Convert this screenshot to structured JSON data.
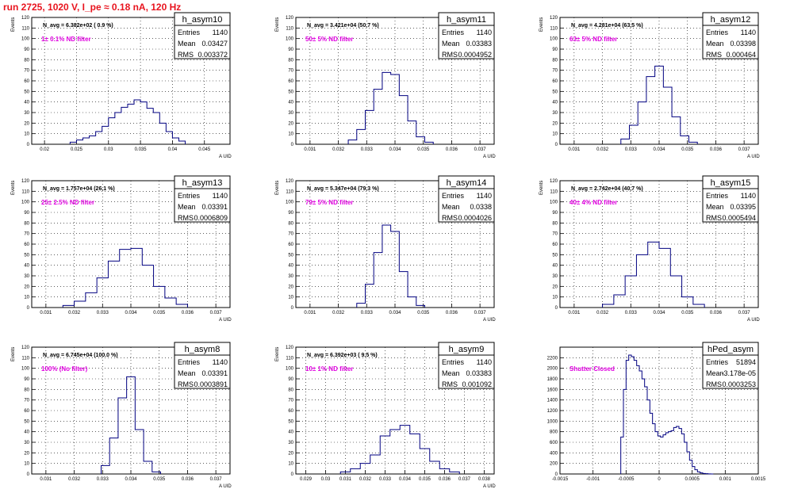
{
  "page_title": "run 2725,  1020 V, I_pe ≈ 0.18 nA, 120 Hz",
  "chart_data": [
    {
      "type": "histogram",
      "name": "h_asym10",
      "entries": "1140",
      "mean": "0.03427",
      "rms": "0.003372",
      "navg": "N_avg = 6.382e+02 ( 0.9 %)",
      "filter": "1± 0.1% ND filter",
      "ylabel": "Events",
      "xlabel": "A_UID",
      "xlim": [
        0.018,
        0.049
      ],
      "ylim": [
        0,
        120
      ],
      "xticks": [
        0.02,
        0.025,
        0.03,
        0.035,
        0.04,
        0.045
      ],
      "xtick_labels": [
        "0.02",
        "0.025",
        "0.03",
        "0.035",
        "0.04",
        "0.045"
      ],
      "yticks": [
        0,
        10,
        20,
        30,
        40,
        50,
        60,
        70,
        80,
        90,
        100,
        110,
        120
      ],
      "bins_x": [
        0.0245,
        0.0255,
        0.0265,
        0.0275,
        0.0285,
        0.0295,
        0.0305,
        0.0315,
        0.0325,
        0.0335,
        0.0345,
        0.0355,
        0.0365,
        0.0375,
        0.0385,
        0.0395,
        0.0405,
        0.0415
      ],
      "bins_y": [
        2,
        4,
        6,
        8,
        12,
        17,
        25,
        30,
        35,
        38,
        42,
        40,
        34,
        30,
        20,
        12,
        6,
        3
      ]
    },
    {
      "type": "histogram",
      "name": "h_asym11",
      "entries": "1140",
      "mean": "0.03383",
      "rms": "0.0004952",
      "navg": "N_avg = 3.421e+04 (50.7 %)",
      "filter": "50± 5% ND filter",
      "ylabel": "Events",
      "xlabel": "A_UID",
      "xlim": [
        0.0305,
        0.0375
      ],
      "ylim": [
        0,
        120
      ],
      "xticks": [
        0.031,
        0.032,
        0.033,
        0.034,
        0.035,
        0.036,
        0.037
      ],
      "xtick_labels": [
        "0.031",
        "0.032",
        "0.033",
        "0.034",
        "0.035",
        "0.036",
        "0.037"
      ],
      "yticks": [
        0,
        10,
        20,
        30,
        40,
        50,
        60,
        70,
        80,
        90,
        100,
        110,
        120
      ],
      "bins_x": [
        0.0325,
        0.0328,
        0.0331,
        0.0334,
        0.0337,
        0.034,
        0.0343,
        0.0346,
        0.0349,
        0.0352
      ],
      "bins_y": [
        4,
        14,
        32,
        52,
        68,
        66,
        46,
        22,
        7,
        2
      ]
    },
    {
      "type": "histogram",
      "name": "h_asym12",
      "entries": "1140",
      "mean": "0.03398",
      "rms": "0.000464",
      "navg": "N_avg = 4.281e+04 (63.5 %)",
      "filter": "63± 5% ND filter",
      "ylabel": "Events",
      "xlabel": "A_UID",
      "xlim": [
        0.0305,
        0.0375
      ],
      "ylim": [
        0,
        120
      ],
      "xticks": [
        0.031,
        0.032,
        0.033,
        0.034,
        0.035,
        0.036,
        0.037
      ],
      "xtick_labels": [
        "0.031",
        "0.032",
        "0.033",
        "0.034",
        "0.035",
        "0.036",
        "0.037"
      ],
      "yticks": [
        0,
        10,
        20,
        30,
        40,
        50,
        60,
        70,
        80,
        90,
        100,
        110,
        120
      ],
      "bins_x": [
        0.0328,
        0.0331,
        0.0334,
        0.0337,
        0.034,
        0.0343,
        0.0346,
        0.0349,
        0.0352
      ],
      "bins_y": [
        5,
        18,
        40,
        64,
        74,
        54,
        26,
        8,
        2
      ]
    },
    {
      "type": "histogram",
      "name": "h_asym13",
      "entries": "1140",
      "mean": "0.03391",
      "rms": "0.0006809",
      "navg": "N_avg = 1.757e+04 (26.1 %)",
      "filter": "25± 2.5% ND filter",
      "ylabel": "Events",
      "xlabel": "A_UID",
      "xlim": [
        0.0305,
        0.0375
      ],
      "ylim": [
        0,
        120
      ],
      "xticks": [
        0.031,
        0.032,
        0.033,
        0.034,
        0.035,
        0.036,
        0.037
      ],
      "xtick_labels": [
        "0.031",
        "0.032",
        "0.033",
        "0.034",
        "0.035",
        "0.036",
        "0.037"
      ],
      "yticks": [
        0,
        10,
        20,
        30,
        40,
        50,
        60,
        70,
        80,
        90,
        100,
        110,
        120
      ],
      "bins_x": [
        0.0318,
        0.0322,
        0.0326,
        0.033,
        0.0334,
        0.0338,
        0.0342,
        0.0346,
        0.035,
        0.0354,
        0.0358
      ],
      "bins_y": [
        2,
        6,
        14,
        28,
        44,
        55,
        56,
        40,
        20,
        9,
        3
      ]
    },
    {
      "type": "histogram",
      "name": "h_asym14",
      "entries": "1140",
      "mean": "0.0338",
      "rms": "0.0004026",
      "navg": "N_avg = 5.347e+04 (79.3 %)",
      "filter": "79± 5% ND filter",
      "ylabel": "Events",
      "xlabel": "A_UID",
      "xlim": [
        0.0305,
        0.0375
      ],
      "ylim": [
        0,
        120
      ],
      "xticks": [
        0.031,
        0.032,
        0.033,
        0.034,
        0.035,
        0.036,
        0.037
      ],
      "xtick_labels": [
        "0.031",
        "0.032",
        "0.033",
        "0.034",
        "0.035",
        "0.036",
        "0.037"
      ],
      "yticks": [
        0,
        10,
        20,
        30,
        40,
        50,
        60,
        70,
        80,
        90,
        100,
        110,
        120
      ],
      "bins_x": [
        0.0328,
        0.0331,
        0.0334,
        0.0337,
        0.034,
        0.0343,
        0.0346,
        0.0349
      ],
      "bins_y": [
        4,
        22,
        52,
        78,
        72,
        34,
        10,
        2
      ]
    },
    {
      "type": "histogram",
      "name": "h_asym15",
      "entries": "1140",
      "mean": "0.03395",
      "rms": "0.0005494",
      "navg": "N_avg = 2.742e+04 (40.7 %)",
      "filter": "40± 4% ND filter",
      "ylabel": "Events",
      "xlabel": "A_UID",
      "xlim": [
        0.0305,
        0.0375
      ],
      "ylim": [
        0,
        120
      ],
      "xticks": [
        0.031,
        0.032,
        0.033,
        0.034,
        0.035,
        0.036,
        0.037
      ],
      "xtick_labels": [
        "0.031",
        "0.032",
        "0.033",
        "0.034",
        "0.035",
        "0.036",
        "0.037"
      ],
      "yticks": [
        0,
        10,
        20,
        30,
        40,
        50,
        60,
        70,
        80,
        90,
        100,
        110,
        120
      ],
      "bins_x": [
        0.0322,
        0.0326,
        0.033,
        0.0334,
        0.0338,
        0.0342,
        0.0346,
        0.035,
        0.0354
      ],
      "bins_y": [
        3,
        12,
        30,
        50,
        62,
        56,
        30,
        10,
        3
      ]
    },
    {
      "type": "histogram",
      "name": "h_asym8",
      "entries": "1140",
      "mean": "0.03391",
      "rms": "0.0003891",
      "navg": "N_avg = 6.745e+04 (100.0 %)",
      "filter": "100% (No filter)",
      "ylabel": "Events",
      "xlabel": "A_UID",
      "xlim": [
        0.0305,
        0.0375
      ],
      "ylim": [
        0,
        120
      ],
      "xticks": [
        0.031,
        0.032,
        0.033,
        0.034,
        0.035,
        0.036,
        0.037
      ],
      "xtick_labels": [
        "0.031",
        "0.032",
        "0.033",
        "0.034",
        "0.035",
        "0.036",
        "0.037"
      ],
      "yticks": [
        0,
        10,
        20,
        30,
        40,
        50,
        60,
        70,
        80,
        90,
        100,
        110,
        120
      ],
      "bins_x": [
        0.0331,
        0.0334,
        0.0337,
        0.034,
        0.0343,
        0.0346,
        0.0349
      ],
      "bins_y": [
        8,
        34,
        72,
        92,
        42,
        12,
        2
      ]
    },
    {
      "type": "histogram",
      "name": "h_asym9",
      "entries": "1140",
      "mean": "0.03383",
      "rms": "0.001092",
      "navg": "N_avg = 6.392e+03 ( 9.5 %)",
      "filter": "10± 1% ND filter",
      "ylabel": "Events",
      "xlabel": "A_UID",
      "xlim": [
        0.0285,
        0.0385
      ],
      "ylim": [
        0,
        120
      ],
      "xticks": [
        0.029,
        0.03,
        0.031,
        0.032,
        0.033,
        0.034,
        0.035,
        0.036,
        0.037,
        0.038
      ],
      "xtick_labels": [
        "0.029",
        "0.03",
        "0.031",
        "0.032",
        "0.033",
        "0.034",
        "0.035",
        "0.036",
        "0.037",
        "0.038"
      ],
      "yticks": [
        0,
        10,
        20,
        30,
        40,
        50,
        60,
        70,
        80,
        90,
        100,
        110,
        120
      ],
      "bins_x": [
        0.031,
        0.0315,
        0.032,
        0.0325,
        0.033,
        0.0335,
        0.034,
        0.0345,
        0.035,
        0.0355,
        0.036,
        0.0365
      ],
      "bins_y": [
        2,
        5,
        10,
        18,
        36,
        42,
        46,
        38,
        24,
        12,
        5,
        2
      ]
    },
    {
      "type": "histogram",
      "name": "hPed_asym",
      "entries": "51894",
      "mean": "-3.178e-05",
      "rms": "0.0003253",
      "navg": "",
      "filter": "Shutter Closed",
      "ylabel": "",
      "xlabel": "",
      "xlim": [
        -0.0015,
        0.0015
      ],
      "ylim": [
        0,
        2400
      ],
      "xticks": [
        -0.0015,
        -0.001,
        -0.0005,
        0,
        0.0005,
        0.001,
        0.0015
      ],
      "xtick_labels": [
        "-0.0015",
        "-0.001",
        "-0.0005",
        "0",
        "0.0005",
        "0.001",
        "0.0015"
      ],
      "yticks": [
        0,
        200,
        400,
        600,
        800,
        1000,
        1200,
        1400,
        1600,
        1800,
        2000,
        2200
      ],
      "bins_x": [
        -0.00056,
        -0.00052,
        -0.00048,
        -0.00044,
        -0.0004,
        -0.00036,
        -0.00032,
        -0.00028,
        -0.00024,
        -0.0002,
        -0.00016,
        -0.00012,
        -8e-05,
        -4e-05,
        0.0,
        4e-05,
        8e-05,
        0.00012,
        0.00016,
        0.0002,
        0.00024,
        0.00028,
        0.00032,
        0.00036,
        0.0004,
        0.00044,
        0.00048,
        0.00052,
        0.00056,
        0.0006,
        0.00064,
        0.00068,
        0.00072,
        0.00076,
        0.0008
      ],
      "bins_y": [
        700,
        1600,
        2150,
        2250,
        2220,
        2150,
        2050,
        1950,
        1800,
        1650,
        1400,
        1150,
        950,
        800,
        720,
        700,
        740,
        780,
        800,
        820,
        880,
        900,
        860,
        760,
        600,
        420,
        260,
        140,
        80,
        40,
        20,
        10,
        5,
        2,
        0
      ]
    }
  ]
}
